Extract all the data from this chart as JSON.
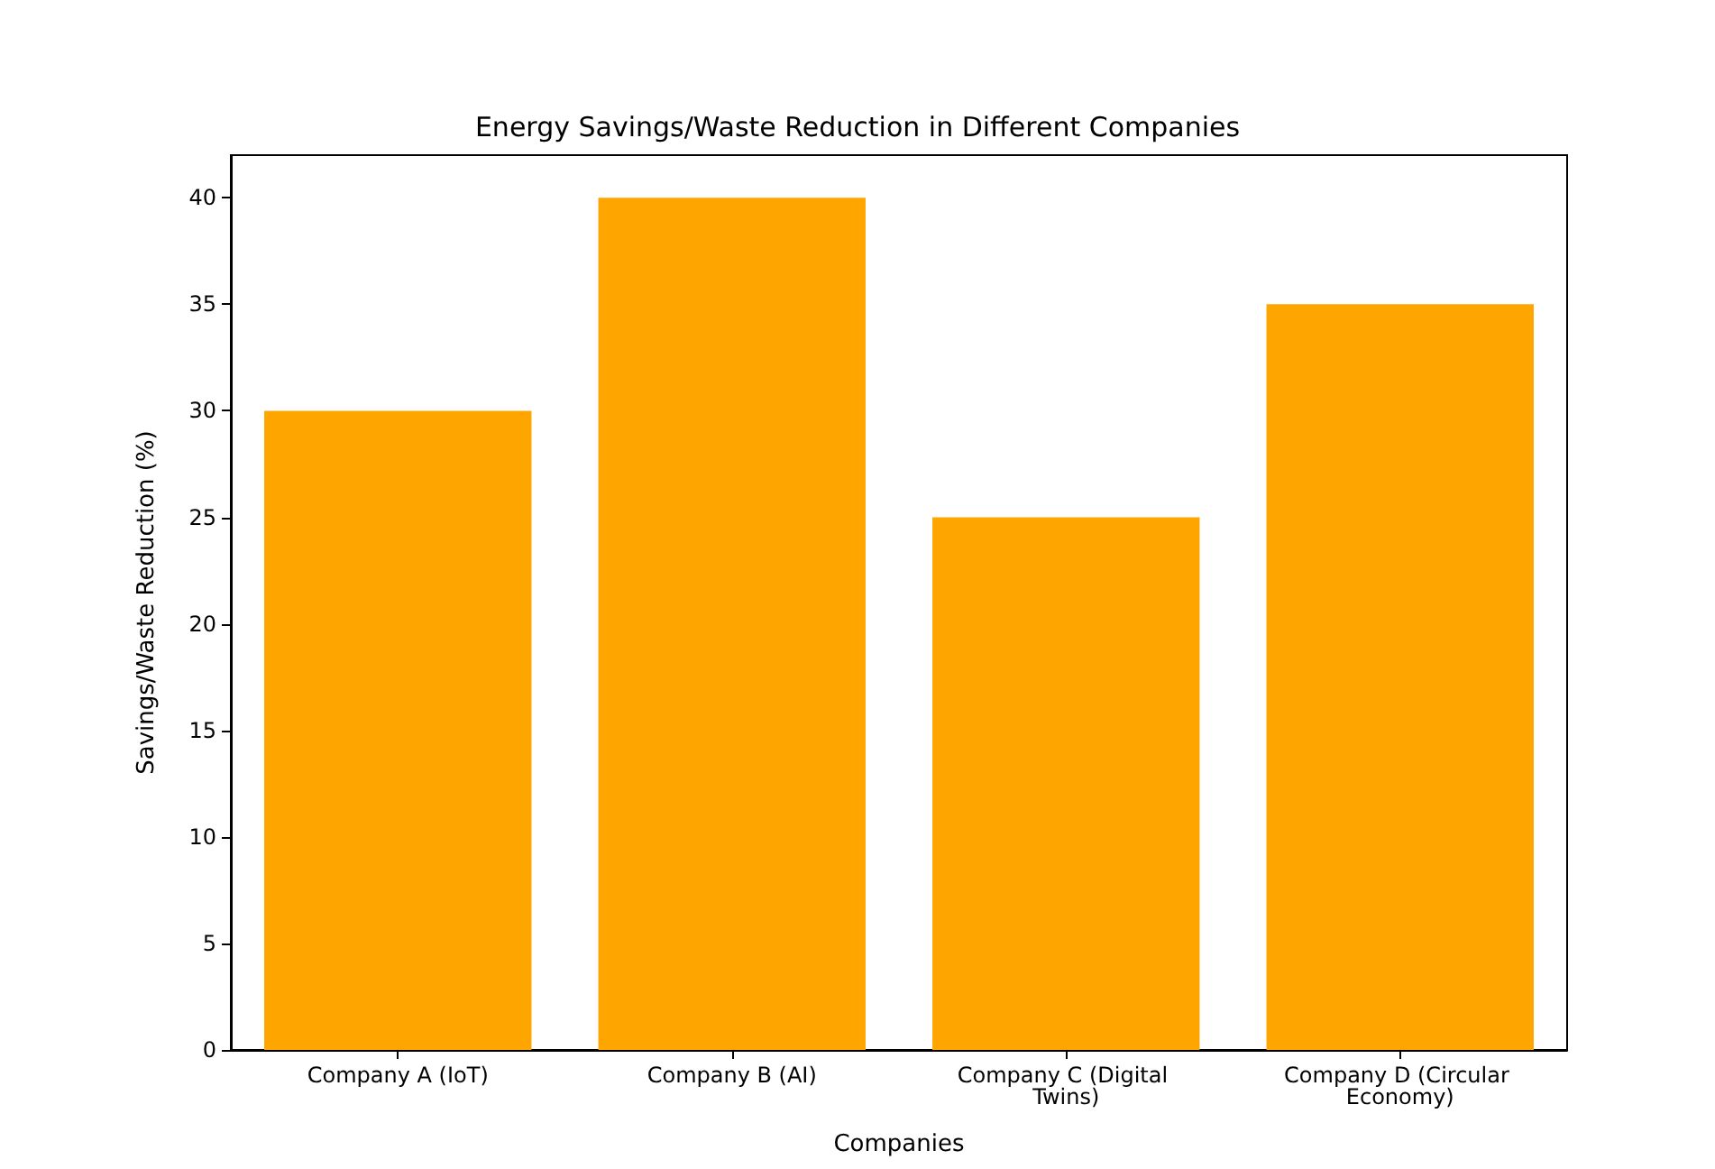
{
  "chart_data": {
    "type": "bar",
    "title": "Energy Savings/Waste Reduction in Different Companies",
    "xlabel": "Companies",
    "ylabel": "Savings/Waste Reduction (%)",
    "categories": [
      "Company A (IoT)",
      "Company B (AI)",
      "Company C (Digital Twins)",
      "Company D (Circular Economy)"
    ],
    "values": [
      30,
      40,
      25,
      35
    ],
    "color": "#ffa500",
    "ylim": [
      0,
      42
    ],
    "yticks": [
      0,
      5,
      10,
      15,
      20,
      25,
      30,
      35,
      40
    ],
    "grid": false
  }
}
